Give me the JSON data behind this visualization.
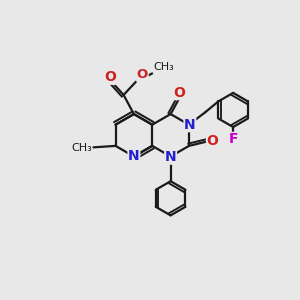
{
  "bg_color": "#e8e8e8",
  "bond_color": "#1a1a1a",
  "N_color": "#2222cc",
  "O_color": "#cc2222",
  "F_color": "#cc00cc",
  "line_width": 1.6,
  "font_size": 10,
  "fig_size": [
    3.0,
    3.0
  ],
  "dpi": 100,
  "xlim": [
    0,
    10
  ],
  "ylim": [
    0,
    10
  ]
}
